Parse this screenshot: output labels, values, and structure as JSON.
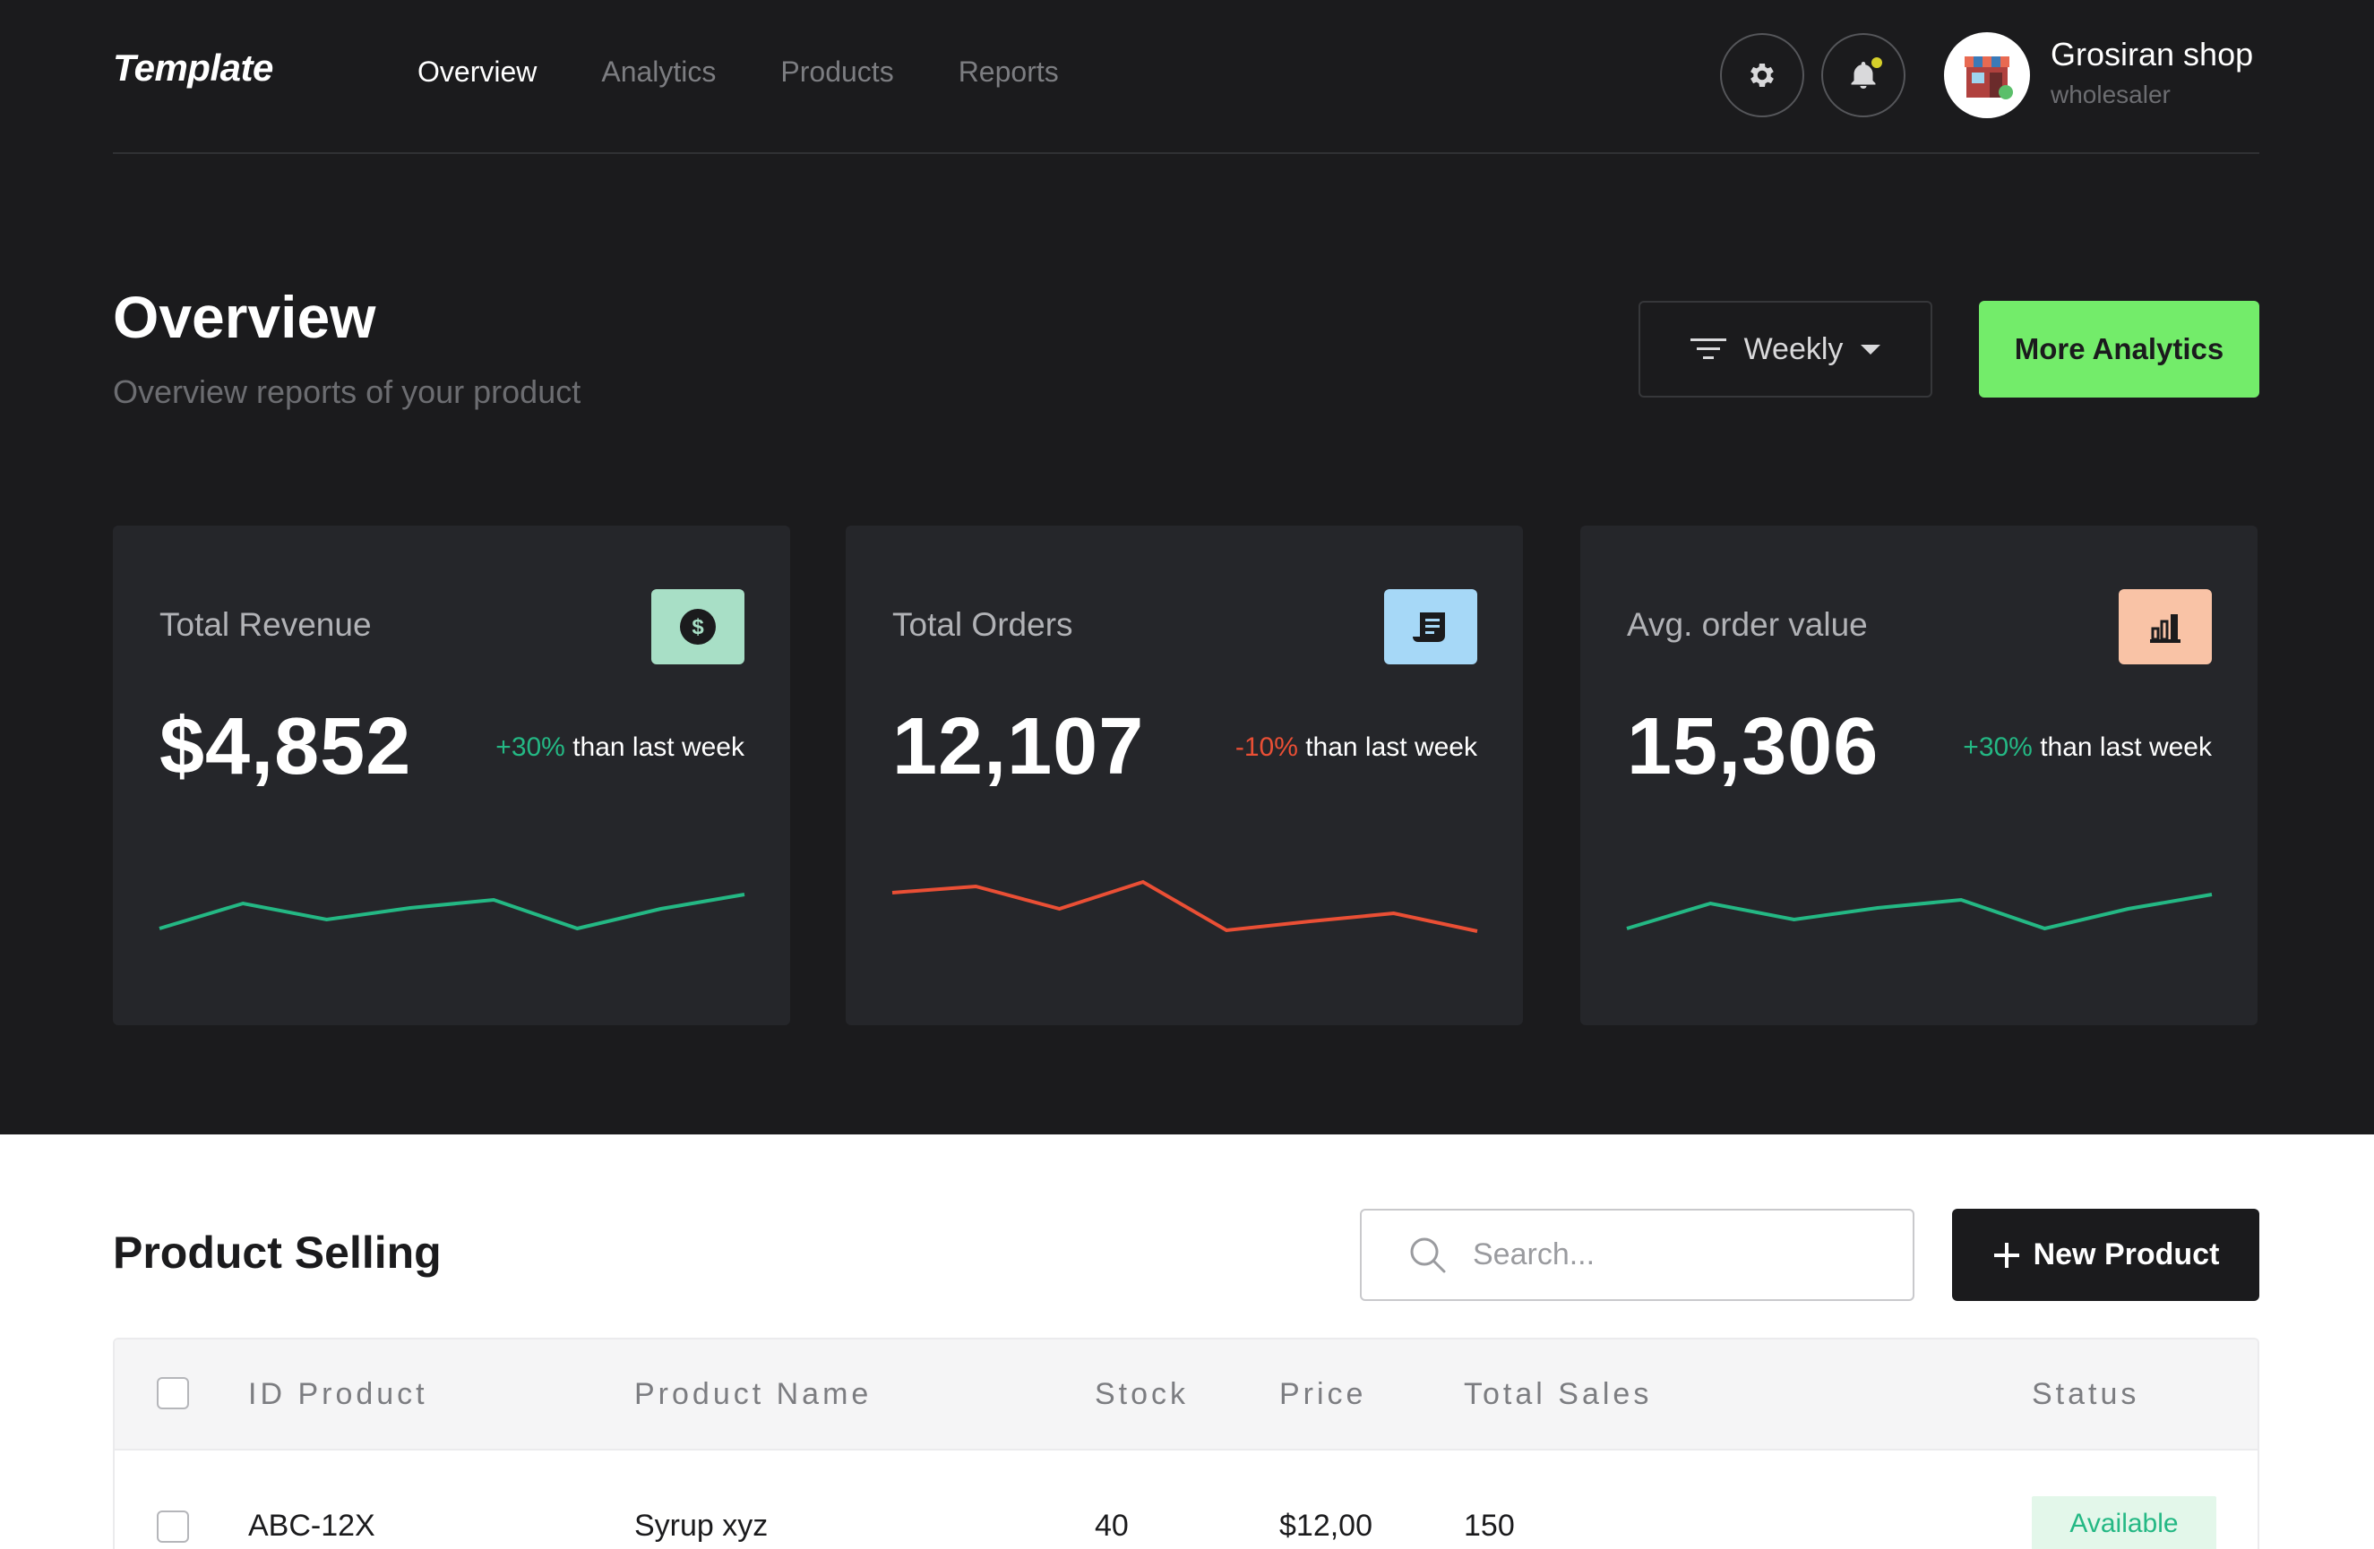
{
  "header": {
    "logo": "Template",
    "nav": [
      "Overview",
      "Analytics",
      "Products",
      "Reports"
    ],
    "active_nav": "Overview",
    "profile": {
      "name": "Grosiran shop",
      "role": "wholesaler"
    }
  },
  "overview": {
    "title": "Overview",
    "subtitle": "Overview reports of your product",
    "filter_label": "Weekly",
    "more_button": "More Analytics"
  },
  "cards": [
    {
      "label": "Total Revenue",
      "value": "$4,852",
      "change": "+30%",
      "change_suffix": " than last week",
      "trend": "up",
      "icon": "dollar-icon",
      "icon_bg": "#a8dfc6",
      "line_color": "#24b884",
      "spark": [
        30,
        58,
        40,
        53,
        62,
        30,
        52,
        68
      ]
    },
    {
      "label": "Total Orders",
      "value": "12,107",
      "change": "-10%",
      "change_suffix": " than last week",
      "trend": "down",
      "icon": "receipt-icon",
      "icon_bg": "#a6d8f7",
      "line_color": "#ea4f35",
      "spark": [
        70,
        77,
        52,
        82,
        28,
        38,
        47,
        27
      ]
    },
    {
      "label": "Avg. order value",
      "value": "15,306",
      "change": "+30%",
      "change_suffix": " than last week",
      "trend": "up",
      "icon": "bar-chart-icon",
      "icon_bg": "#f9c3a6",
      "line_color": "#24b884",
      "spark": [
        30,
        58,
        40,
        53,
        62,
        30,
        52,
        68
      ]
    }
  ],
  "products": {
    "title": "Product Selling",
    "search_placeholder": "Search...",
    "new_button": "New Product",
    "columns": [
      "ID Product",
      "Product Name",
      "Stock",
      "Price",
      "Total Sales",
      "Status"
    ],
    "rows": [
      {
        "id": "ABC-12X",
        "name": "Syrup xyz",
        "stock": "40",
        "price": "$12,00",
        "total_sales": "150",
        "status": "Available"
      }
    ]
  },
  "colors": {
    "accent": "#73ec6a",
    "positive": "#24b884",
    "negative": "#ea4f35",
    "dark_bg": "#1b1b1d",
    "card_bg": "#25262a"
  }
}
